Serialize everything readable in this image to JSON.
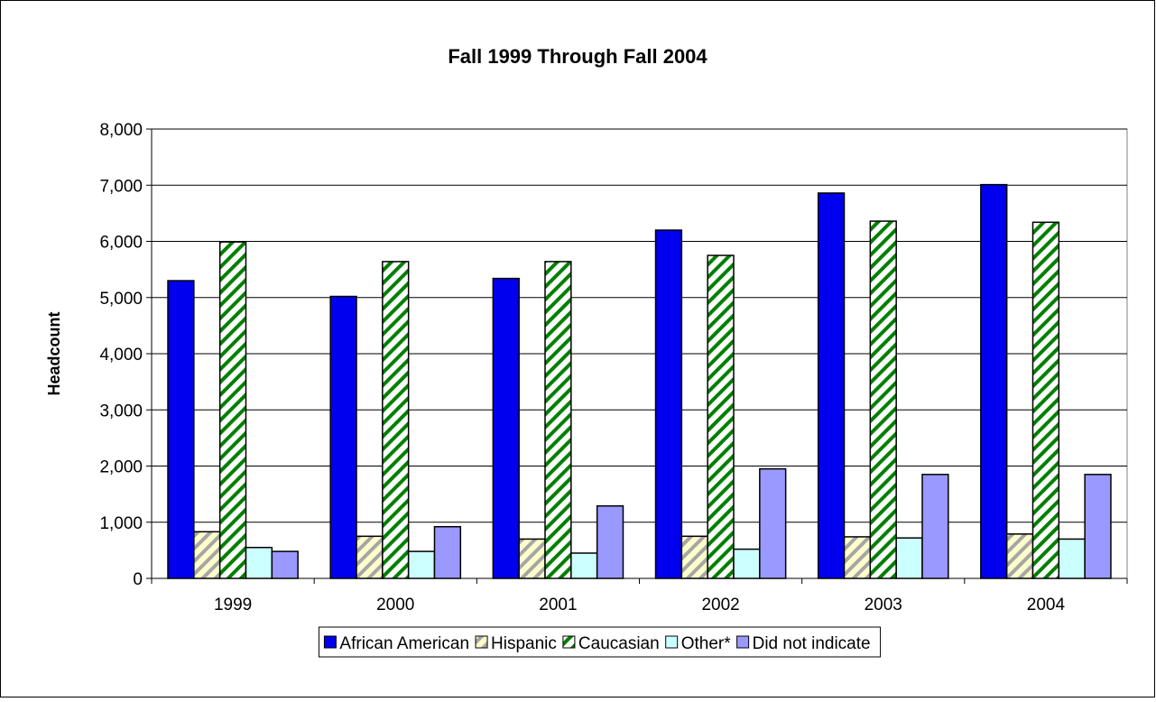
{
  "chart_data": {
    "type": "bar",
    "title": "Fall 1999 Through Fall 2004",
    "y_label": "Headcount",
    "categories": [
      "1999",
      "2000",
      "2001",
      "2002",
      "2003",
      "2004"
    ],
    "series": [
      {
        "name": "African American",
        "color": "#0000ee",
        "values": [
          5300,
          5020,
          5340,
          6200,
          6860,
          7010
        ]
      },
      {
        "name": "Hispanic",
        "color": "#ffffcc",
        "hatch_color": "#a6a6a6",
        "values": [
          830,
          750,
          700,
          750,
          740,
          790
        ]
      },
      {
        "name": "Caucasian",
        "color": "#ffffff",
        "hatch_color": "#008000",
        "values": [
          5990,
          5640,
          5640,
          5750,
          6360,
          6340
        ]
      },
      {
        "name": "Other*",
        "color": "#ccffff",
        "values": [
          550,
          480,
          450,
          520,
          720,
          700
        ]
      },
      {
        "name": "Did not indicate",
        "color": "#9999ff",
        "values": [
          480,
          920,
          1290,
          1950,
          1850,
          1850
        ]
      }
    ],
    "ylim": [
      0,
      8000
    ],
    "yticks": [
      0,
      {
        "value": 1000,
        "label": "1,000"
      },
      {
        "value": 2000,
        "label": "2,000"
      },
      {
        "value": 3000,
        "label": "3,000"
      },
      {
        "value": 4000,
        "label": "4,000"
      },
      {
        "value": 5000,
        "label": "5,000"
      },
      {
        "value": 6000,
        "label": "6,000"
      },
      {
        "value": 7000,
        "label": "7,000"
      },
      {
        "value": 8000,
        "label": "8,000"
      }
    ],
    "grid": true,
    "legend": "bottom"
  }
}
